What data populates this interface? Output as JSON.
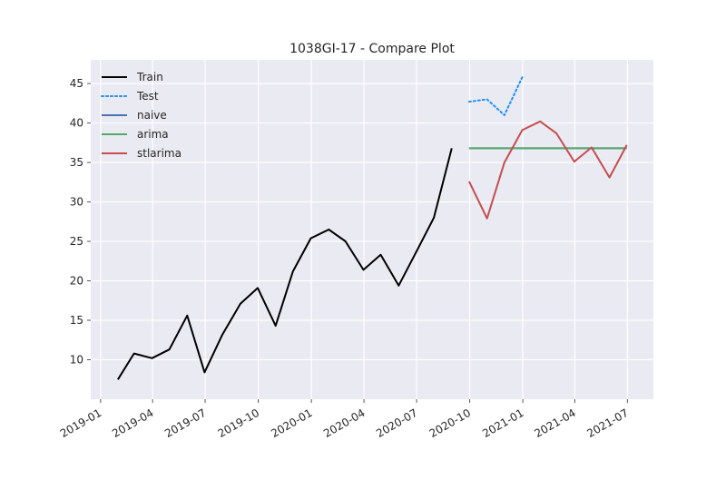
{
  "chart_data": {
    "type": "line",
    "title": "1038GI-17 - Compare Plot",
    "xlabel": "",
    "ylabel": "",
    "x_axis_type": "date",
    "xlim": [
      "2018-12-15",
      "2021-08-15"
    ],
    "ylim": [
      5,
      48
    ],
    "grid": true,
    "legend_position": "top-left",
    "x_ticks": [
      {
        "date": "2019-01-01",
        "label": "2019-01"
      },
      {
        "date": "2019-04-01",
        "label": "2019-04"
      },
      {
        "date": "2019-07-01",
        "label": "2019-07"
      },
      {
        "date": "2019-10-01",
        "label": "2019-10"
      },
      {
        "date": "2020-01-01",
        "label": "2020-01"
      },
      {
        "date": "2020-04-01",
        "label": "2020-04"
      },
      {
        "date": "2020-07-01",
        "label": "2020-07"
      },
      {
        "date": "2020-10-01",
        "label": "2020-10"
      },
      {
        "date": "2021-01-01",
        "label": "2021-01"
      },
      {
        "date": "2021-04-01",
        "label": "2021-04"
      },
      {
        "date": "2021-07-01",
        "label": "2021-07"
      }
    ],
    "y_ticks": [
      10,
      15,
      20,
      25,
      30,
      35,
      40,
      45
    ],
    "series": [
      {
        "name": "Train",
        "color": "#000000",
        "style": "solid",
        "points": [
          [
            "2019-01-31",
            7.5
          ],
          [
            "2019-02-28",
            10.8
          ],
          [
            "2019-03-31",
            10.2
          ],
          [
            "2019-04-30",
            11.3
          ],
          [
            "2019-05-31",
            15.6
          ],
          [
            "2019-06-30",
            8.4
          ],
          [
            "2019-07-31",
            13.2
          ],
          [
            "2019-08-31",
            17.1
          ],
          [
            "2019-09-30",
            19.1
          ],
          [
            "2019-10-31",
            14.3
          ],
          [
            "2019-11-30",
            21.2
          ],
          [
            "2019-12-31",
            25.4
          ],
          [
            "2020-01-31",
            26.5
          ],
          [
            "2020-02-29",
            25.0
          ],
          [
            "2020-03-31",
            21.4
          ],
          [
            "2020-04-30",
            23.3
          ],
          [
            "2020-05-31",
            19.4
          ],
          [
            "2020-06-30",
            23.6
          ],
          [
            "2020-07-31",
            28.0
          ],
          [
            "2020-08-31",
            36.8
          ]
        ]
      },
      {
        "name": "Test",
        "color": "#1e90ff",
        "style": "dotted",
        "points": [
          [
            "2020-09-30",
            42.7
          ],
          [
            "2020-10-31",
            43.0
          ],
          [
            "2020-11-30",
            41.0
          ],
          [
            "2020-12-31",
            45.8
          ]
        ]
      },
      {
        "name": "naive",
        "color": "#4c72b0",
        "style": "solid",
        "points": [
          [
            "2020-09-30",
            36.8
          ],
          [
            "2021-06-30",
            36.8
          ]
        ]
      },
      {
        "name": "arima",
        "color": "#55a868",
        "style": "solid",
        "points": [
          [
            "2020-09-30",
            36.8
          ],
          [
            "2021-06-30",
            36.8
          ]
        ]
      },
      {
        "name": "stlarima",
        "color": "#c44e52",
        "style": "solid",
        "points": [
          [
            "2020-09-30",
            32.6
          ],
          [
            "2020-10-31",
            27.9
          ],
          [
            "2020-11-30",
            35.0
          ],
          [
            "2020-12-31",
            39.1
          ],
          [
            "2021-01-31",
            40.2
          ],
          [
            "2021-02-28",
            38.7
          ],
          [
            "2021-03-31",
            35.1
          ],
          [
            "2021-04-30",
            36.9
          ],
          [
            "2021-05-31",
            33.1
          ],
          [
            "2021-06-30",
            37.2
          ]
        ]
      }
    ]
  }
}
